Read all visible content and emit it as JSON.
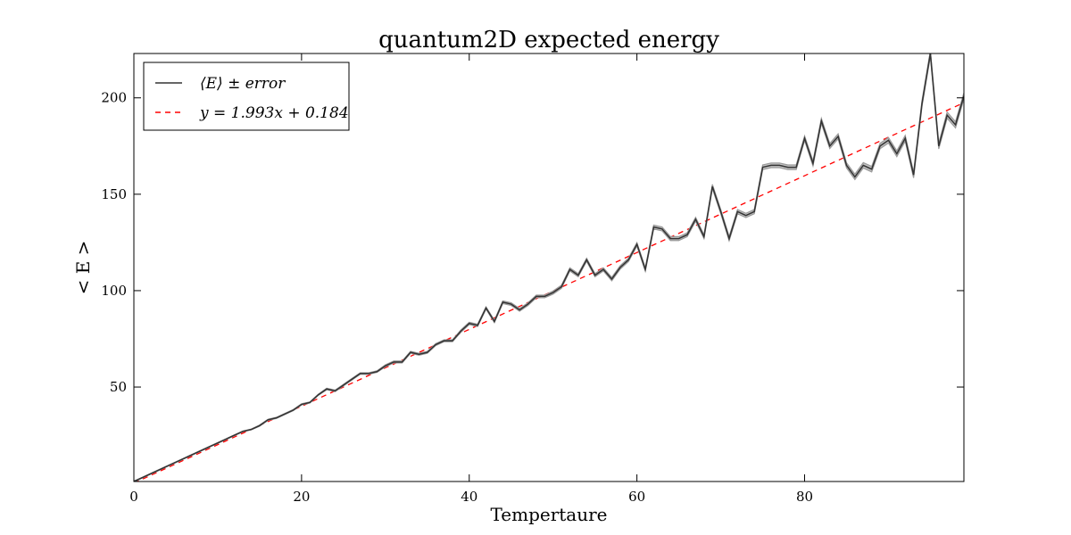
{
  "chart_data": {
    "type": "line",
    "title": "quantum2D expected energy",
    "xlabel": "Tempertaure",
    "ylabel": "< E >",
    "xlim": [
      0,
      99
    ],
    "ylim": [
      1,
      223
    ],
    "xticks": [
      0,
      20,
      40,
      60,
      80
    ],
    "yticks": [
      50,
      100,
      150,
      200
    ],
    "grid": false,
    "legend_placement": "top-left",
    "series": [
      {
        "name": "⟨E⟩ ± error",
        "color": "#333333",
        "band_color": "#999999",
        "style": "solid",
        "x": [
          0,
          1,
          2,
          3,
          4,
          5,
          6,
          7,
          8,
          9,
          10,
          11,
          12,
          13,
          14,
          15,
          16,
          17,
          18,
          19,
          20,
          21,
          22,
          23,
          24,
          25,
          26,
          27,
          28,
          29,
          30,
          31,
          32,
          33,
          34,
          35,
          36,
          37,
          38,
          39,
          40,
          41,
          42,
          43,
          44,
          45,
          46,
          47,
          48,
          49,
          50,
          51,
          52,
          53,
          54,
          55,
          56,
          57,
          58,
          59,
          60,
          61,
          62,
          63,
          64,
          65,
          66,
          67,
          68,
          69,
          70,
          71,
          72,
          73,
          74,
          75,
          76,
          77,
          78,
          79,
          80,
          81,
          82,
          83,
          84,
          85,
          86,
          87,
          88,
          89,
          90,
          91,
          92,
          93,
          94,
          95,
          96,
          97,
          98,
          99
        ],
        "y": [
          1,
          3,
          5,
          7,
          9,
          11,
          13,
          15,
          17,
          19,
          21,
          23,
          25,
          27,
          28,
          30,
          33,
          34,
          36,
          38,
          41,
          42,
          46,
          49,
          48,
          51,
          54,
          57,
          57,
          58,
          61,
          63,
          63,
          68,
          67,
          68,
          72,
          74,
          74,
          79,
          83,
          82,
          91,
          84,
          94,
          93,
          90,
          93,
          97,
          97,
          99,
          102,
          111,
          108,
          116,
          108,
          111,
          106,
          112,
          116,
          124,
          111,
          133,
          132,
          127,
          127,
          129,
          137,
          128,
          154,
          141,
          127,
          141,
          139,
          141,
          164,
          165,
          165,
          164,
          164,
          179,
          166,
          188,
          175,
          180,
          165,
          159,
          165,
          163,
          175,
          178,
          171,
          179,
          160,
          197,
          223,
          175,
          191,
          186,
          201
        ],
        "error": [
          0.2,
          0.2,
          0.2,
          0.2,
          0.2,
          0.2,
          0.2,
          0.2,
          0.2,
          0.2,
          0.2,
          0.2,
          0.2,
          0.2,
          0.2,
          0.3,
          0.3,
          0.3,
          0.3,
          0.3,
          0.3,
          0.3,
          0.3,
          0.4,
          0.4,
          0.4,
          0.4,
          0.4,
          0.4,
          0.4,
          0.5,
          0.5,
          0.5,
          0.5,
          0.5,
          0.5,
          0.5,
          0.5,
          0.5,
          0.6,
          0.6,
          0.6,
          0.6,
          0.6,
          0.7,
          0.7,
          0.7,
          0.7,
          0.7,
          0.7,
          0.8,
          0.8,
          0.8,
          0.8,
          0.8,
          0.8,
          0.8,
          0.9,
          0.9,
          0.9,
          0.9,
          0.9,
          1.0,
          1.0,
          1.0,
          1.0,
          1.0,
          1.0,
          1.0,
          1.1,
          1.1,
          1.1,
          1.1,
          1.1,
          1.1,
          1.2,
          1.2,
          1.2,
          1.2,
          1.2,
          1.2,
          1.3,
          1.3,
          1.3,
          1.3,
          1.3,
          1.4,
          1.4,
          1.4,
          1.4,
          1.4,
          1.5,
          1.5,
          1.5,
          1.5,
          1.5,
          1.5,
          1.6,
          1.6,
          1.6
        ]
      },
      {
        "name": "y = 1.993x + 0.184",
        "color": "#ff0000",
        "style": "dashed",
        "slope": 1.993,
        "intercept": 0.184
      }
    ],
    "legend": [
      {
        "label": "⟨E⟩ ± error"
      },
      {
        "label": "y = 1.993x + 0.184"
      }
    ]
  }
}
